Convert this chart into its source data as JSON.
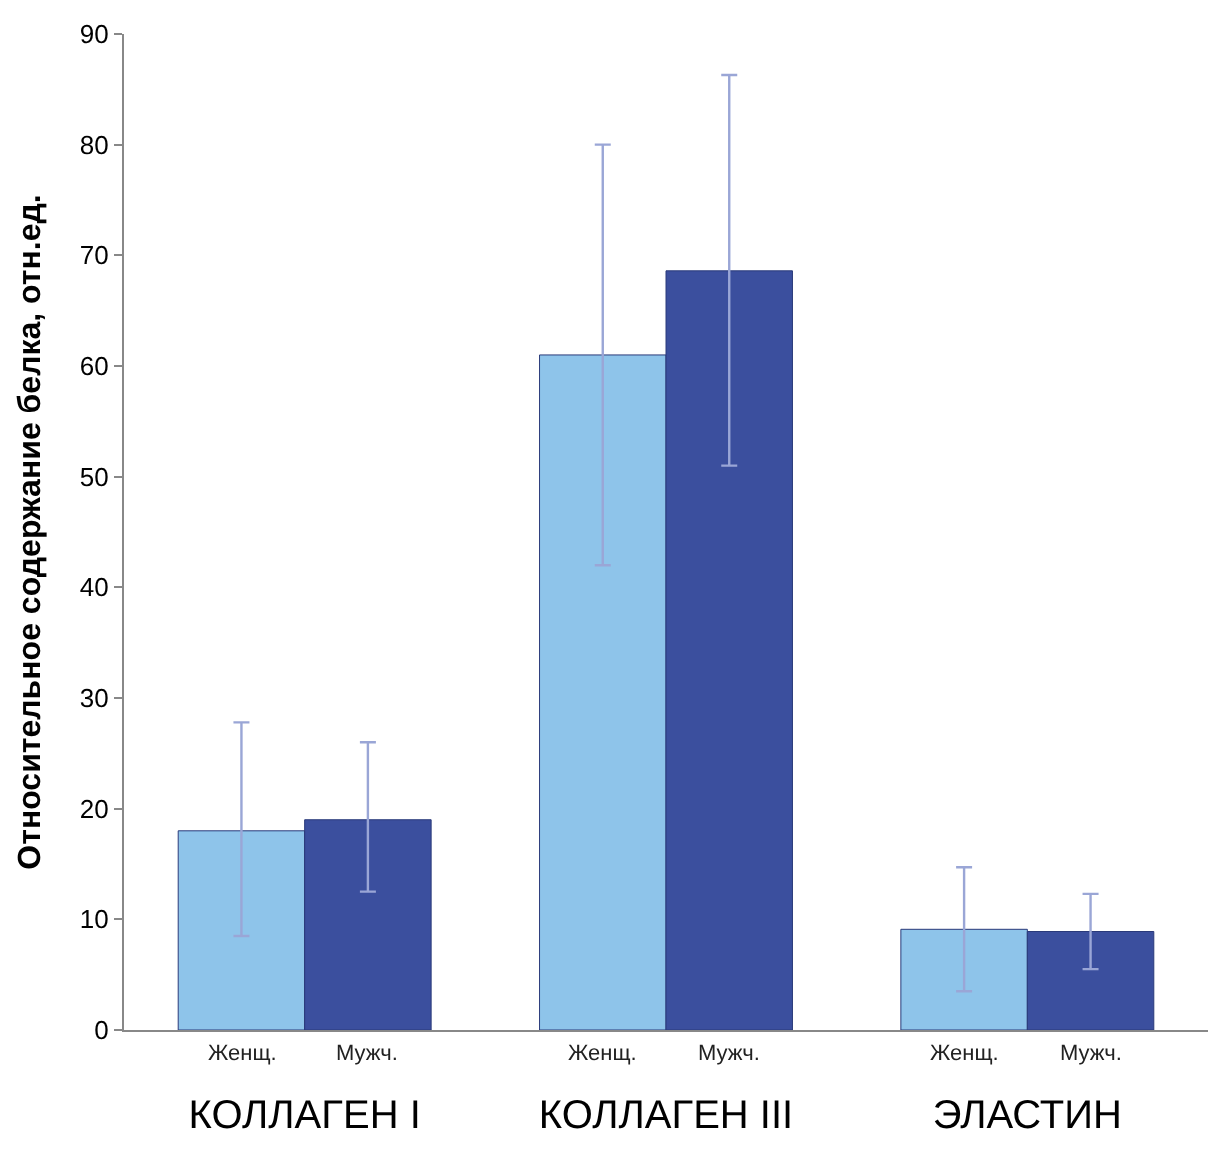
{
  "chart_data": {
    "type": "bar",
    "ylabel": "Относительное содержание белка, отн.ед.",
    "categories": [
      "КОЛЛАГЕН I",
      "КОЛЛАГЕН III",
      "ЭЛАСТИН"
    ],
    "series": [
      {
        "name": "Женщ.",
        "color": "#8ec4ea",
        "values": [
          18,
          61,
          9.1
        ],
        "errors": [
          [
            8.5,
            27.8
          ],
          [
            42,
            80
          ],
          [
            3.5,
            14.7
          ]
        ]
      },
      {
        "name": "Мужч.",
        "color": "#3b4f9e",
        "values": [
          19,
          68.6,
          8.9
        ],
        "errors": [
          [
            12.5,
            26
          ],
          [
            51,
            86.3
          ],
          [
            5.5,
            12.3
          ]
        ]
      }
    ],
    "ylim": [
      0,
      90
    ],
    "yticks": [
      0,
      10,
      20,
      30,
      40,
      50,
      60,
      70,
      80,
      90
    ],
    "legend": false
  }
}
